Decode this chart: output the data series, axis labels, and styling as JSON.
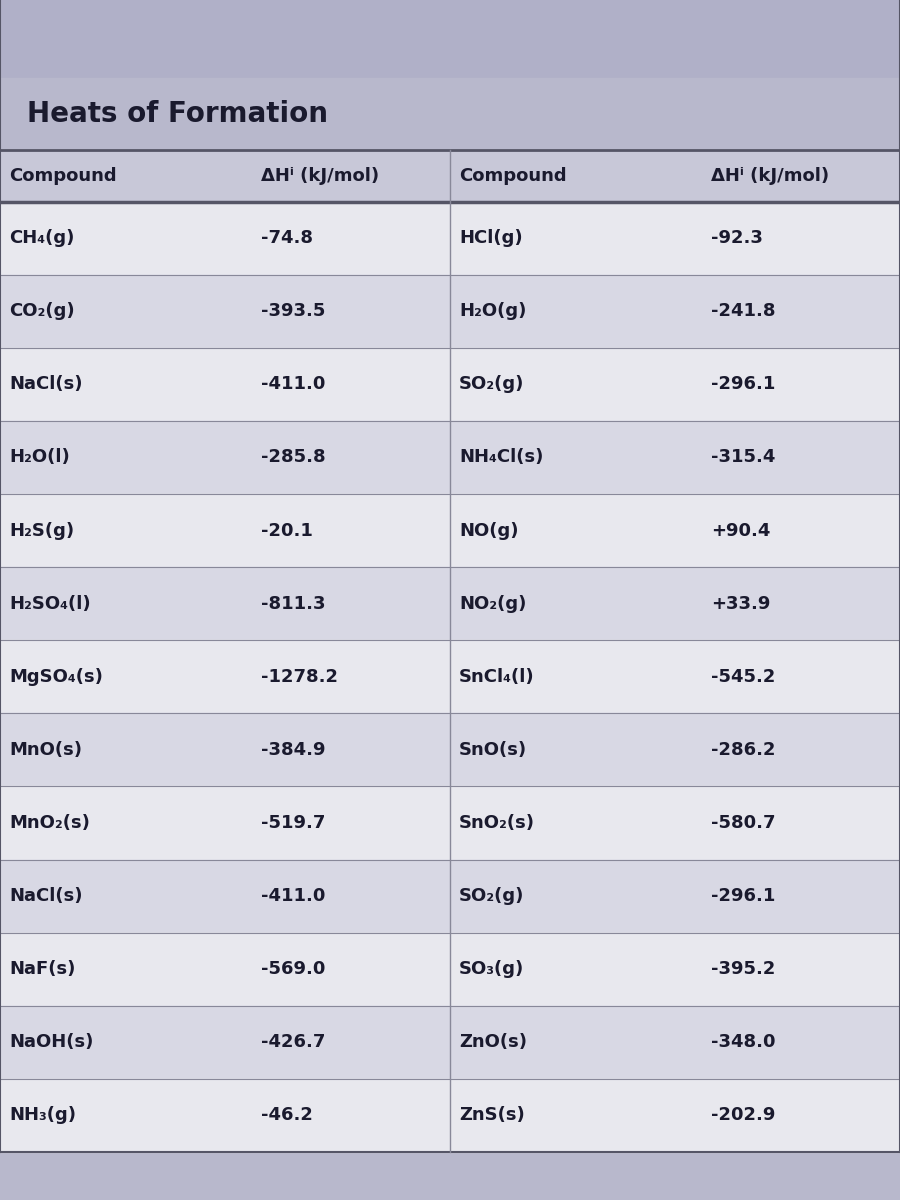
{
  "title": "Heats of Formation",
  "col_headers": [
    "Compound",
    "ΔHⁱ (kJ/mol)",
    "Compound",
    "ΔHⁱ (kJ/mol)"
  ],
  "rows": [
    [
      "CH₄(g)",
      "-74.8",
      "HCl(g)",
      "-92.3"
    ],
    [
      "CO₂(g)",
      "-393.5",
      "H₂O(g)",
      "-241.8"
    ],
    [
      "NaCl(s)",
      "-411.0",
      "SO₂(g)",
      "-296.1"
    ],
    [
      "H₂O(l)",
      "-285.8",
      "NH₄Cl(s)",
      "-315.4"
    ],
    [
      "H₂S(g)",
      "-20.1",
      "NO(g)",
      "+90.4"
    ],
    [
      "H₂SO₄(l)",
      "-811.3",
      "NO₂(g)",
      "+33.9"
    ],
    [
      "MgSO₄(s)",
      "-1278.2",
      "SnCl₄(l)",
      "-545.2"
    ],
    [
      "MnO(s)",
      "-384.9",
      "SnO(s)",
      "-286.2"
    ],
    [
      "MnO₂(s)",
      "-519.7",
      "SnO₂(s)",
      "-580.7"
    ],
    [
      "NaCl(s)",
      "-411.0",
      "SO₂(g)",
      "-296.1"
    ],
    [
      "NaF(s)",
      "-569.0",
      "SO₃(g)",
      "-395.2"
    ],
    [
      "NaOH(s)",
      "-426.7",
      "ZnO(s)",
      "-348.0"
    ],
    [
      "NH₃(g)",
      "-46.2",
      "ZnS(s)",
      "-202.9"
    ]
  ],
  "bg_top_banner": "#b0b0c8",
  "bg_title_area": "#b8b8cc",
  "bg_header_row": "#c8c8d8",
  "bg_row_light": "#e8e8ee",
  "bg_row_dark": "#d8d8e4",
  "bg_page": "#b8b8cc",
  "text_color": "#1a1a2e",
  "line_color": "#888899",
  "thick_line_color": "#555566",
  "title_fontsize": 20,
  "header_fontsize": 13,
  "row_fontsize": 13
}
